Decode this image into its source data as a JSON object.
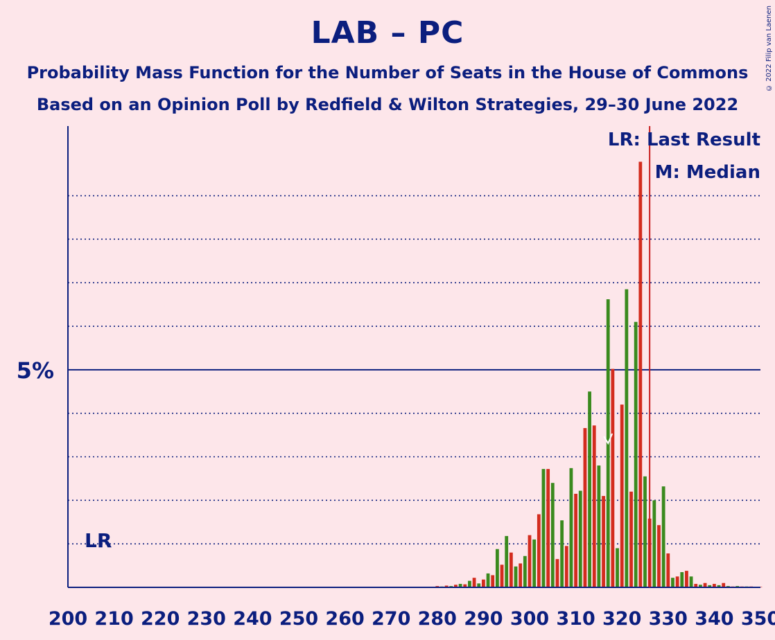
{
  "title": "LAB – PC",
  "subtitle1": "Probability Mass Function for the Number of Seats in the House of Commons",
  "subtitle2": "Based on an Opinion Poll by Redfield & Wilton Strategies, 29–30 June 2022",
  "copyright": "© 2022 Filip van Laenen",
  "colors": {
    "bg": "#FDE6EA",
    "axis": "#0B1E7E",
    "green": "#3A8A1E",
    "red": "#D32C1E",
    "lr_line": "#C82020"
  },
  "chart_data": {
    "type": "bar",
    "xlim": [
      200,
      350
    ],
    "x_ticks": [
      200,
      210,
      220,
      230,
      240,
      250,
      260,
      270,
      280,
      290,
      300,
      310,
      320,
      330,
      340,
      350
    ],
    "ylim": [
      0,
      10.6
    ],
    "y_major_tick": {
      "value": 5,
      "label": "5%"
    },
    "y_dotted_gridlines": [
      1,
      2,
      3,
      4,
      6,
      7,
      8,
      9
    ],
    "legend": {
      "lr": "LR: Last Result",
      "m": "M: Median",
      "position": "top-right"
    },
    "last_result": {
      "seats": 326,
      "label_marker": "LR"
    },
    "median": 317,
    "x": [
      280,
      281,
      282,
      283,
      284,
      285,
      286,
      287,
      288,
      289,
      290,
      291,
      292,
      293,
      294,
      295,
      296,
      297,
      298,
      299,
      300,
      301,
      302,
      303,
      304,
      305,
      306,
      307,
      308,
      309,
      310,
      311,
      312,
      313,
      314,
      315,
      316,
      317,
      318,
      319,
      320,
      321,
      322,
      323,
      324,
      325,
      326,
      327,
      328,
      329,
      330,
      331,
      332,
      333,
      334,
      335,
      336,
      337,
      338,
      339,
      340,
      341,
      342,
      343,
      344,
      345,
      346,
      347,
      348,
      349,
      350
    ],
    "values": [
      0.03,
      0.02,
      0.04,
      0.03,
      0.06,
      0.08,
      0.07,
      0.15,
      0.22,
      0.09,
      0.18,
      0.32,
      0.28,
      0.88,
      0.52,
      1.18,
      0.8,
      0.48,
      0.55,
      0.72,
      1.2,
      1.1,
      1.68,
      2.72,
      2.72,
      2.4,
      0.65,
      1.54,
      0.95,
      2.74,
      2.15,
      2.22,
      3.66,
      4.5,
      3.72,
      2.8,
      2.1,
      6.62,
      5.02,
      0.9,
      4.2,
      6.85,
      2.2,
      6.1,
      9.78,
      2.55,
      1.58,
      2.0,
      1.43,
      2.32,
      0.78,
      0.22,
      0.25,
      0.35,
      0.38,
      0.25,
      0.08,
      0.06,
      0.1,
      0.05,
      0.08,
      0.05,
      0.1,
      0.03,
      0.02,
      0.03,
      0.02,
      0.02,
      0.02,
      0.01,
      0.01
    ]
  }
}
